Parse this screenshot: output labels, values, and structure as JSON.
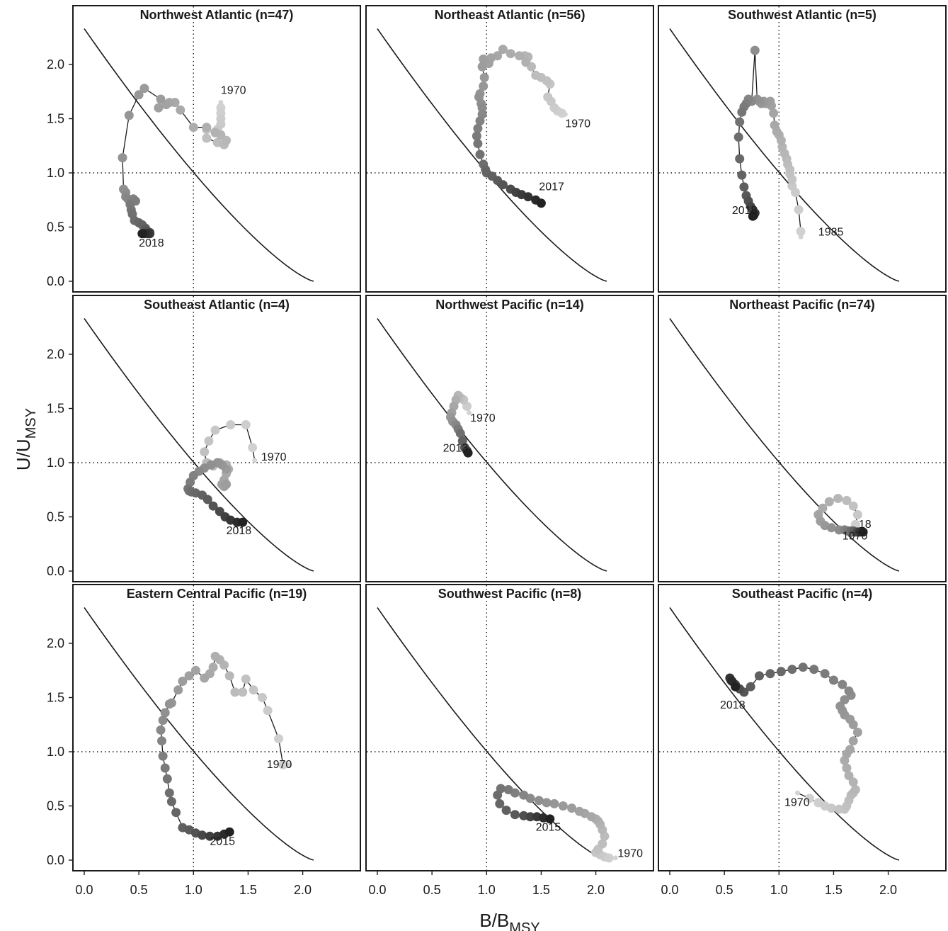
{
  "figure": {
    "xlabel": "B/B",
    "xlabel_sub": "MSY",
    "ylabel": "U/U",
    "ylabel_sub": "MSY",
    "x_ticks": [
      "0.0",
      "0.5",
      "1.0",
      "1.5",
      "2.0"
    ],
    "y_ticks": [
      "0.0",
      "0.5",
      "1.0",
      "1.5",
      "2.0"
    ],
    "colors": {
      "frame": "#1a1a1a",
      "curve": "#1a1a1a",
      "early": "#d4d4d4",
      "late": "#222222"
    }
  },
  "chart_data": [
    {
      "type": "line",
      "title": "Northwest Atlantic (n=47)",
      "xlim": [
        -0.1,
        2.5
      ],
      "ylim": [
        -0.1,
        2.5
      ],
      "reference_lines": {
        "x": 1.0,
        "y": 1.0
      },
      "labels": [
        {
          "text": "1970",
          "x": 1.25,
          "y": 1.73
        },
        {
          "text": "2018",
          "x": 0.5,
          "y": 0.32
        }
      ],
      "series": [
        {
          "x": [
            1.25,
            1.25,
            1.25,
            1.25,
            1.25,
            1.22,
            1.2,
            1.12,
            1.12,
            1.22,
            1.28,
            1.3,
            1.25,
            1.2,
            1.12,
            1.0,
            0.88,
            0.83,
            0.78,
            0.75,
            0.68,
            0.7,
            0.55,
            0.5,
            0.41,
            0.35,
            0.36,
            0.38,
            0.38,
            0.4,
            0.45,
            0.47,
            0.42,
            0.43,
            0.44,
            0.46,
            0.5,
            0.53,
            0.56,
            0.56,
            0.58,
            0.6,
            0.6,
            0.6,
            0.58,
            0.55,
            0.53
          ],
          "y": [
            1.65,
            1.6,
            1.55,
            1.5,
            1.45,
            1.4,
            1.38,
            1.4,
            1.32,
            1.28,
            1.26,
            1.3,
            1.35,
            1.37,
            1.42,
            1.42,
            1.58,
            1.65,
            1.65,
            1.63,
            1.6,
            1.68,
            1.78,
            1.72,
            1.53,
            1.14,
            0.85,
            0.82,
            0.78,
            0.76,
            0.76,
            0.74,
            0.71,
            0.66,
            0.62,
            0.56,
            0.54,
            0.52,
            0.49,
            0.47,
            0.46,
            0.45,
            0.44,
            0.44,
            0.44,
            0.44,
            0.44
          ]
        }
      ]
    },
    {
      "type": "line",
      "title": "Northeast Atlantic (n=56)",
      "xlim": [
        -0.1,
        2.5
      ],
      "ylim": [
        -0.1,
        2.5
      ],
      "reference_lines": {
        "x": 1.0,
        "y": 1.0
      },
      "labels": [
        {
          "text": "1970",
          "x": 1.72,
          "y": 1.42
        },
        {
          "text": "2017",
          "x": 1.48,
          "y": 0.84
        }
      ],
      "series": [
        {
          "x": [
            1.72,
            1.69,
            1.65,
            1.62,
            1.59,
            1.56,
            1.58,
            1.55,
            1.5,
            1.45,
            1.41,
            1.38,
            1.35,
            1.36,
            1.3,
            1.22,
            1.15,
            1.1,
            1.04,
            1.02,
            0.97,
            0.96,
            0.98,
            0.97,
            0.94,
            0.93,
            0.95,
            0.96,
            0.96,
            0.94,
            0.92,
            0.91,
            0.92,
            0.94,
            0.97,
            0.99,
            1.0,
            1.05,
            1.1,
            1.15,
            1.22,
            1.27,
            1.32,
            1.38,
            1.45,
            1.5
          ],
          "y": [
            1.54,
            1.55,
            1.57,
            1.6,
            1.66,
            1.7,
            1.82,
            1.85,
            1.88,
            1.9,
            1.98,
            2.07,
            2.08,
            2.02,
            2.08,
            2.1,
            2.14,
            2.08,
            2.06,
            2.01,
            2.05,
            1.98,
            1.88,
            1.8,
            1.73,
            1.7,
            1.64,
            1.6,
            1.54,
            1.48,
            1.41,
            1.34,
            1.27,
            1.17,
            1.08,
            1.03,
            1.0,
            0.97,
            0.93,
            0.89,
            0.85,
            0.82,
            0.8,
            0.78,
            0.75,
            0.72
          ]
        }
      ]
    },
    {
      "type": "line",
      "title": "Southwest Atlantic (n=5)",
      "xlim": [
        -0.1,
        2.5
      ],
      "ylim": [
        -0.1,
        2.5
      ],
      "reference_lines": {
        "x": 1.0,
        "y": 1.0
      },
      "labels": [
        {
          "text": "1985",
          "x": 1.36,
          "y": 0.42
        },
        {
          "text": "2018",
          "x": 0.57,
          "y": 0.62
        }
      ],
      "series": [
        {
          "x": [
            1.2,
            1.2,
            1.18,
            1.15,
            1.12,
            1.12,
            1.1,
            1.1,
            1.08,
            1.07,
            1.05,
            1.03,
            1.02,
            1.0,
            0.98,
            0.96,
            0.95,
            0.93,
            0.92,
            0.88,
            0.86,
            0.84,
            0.82,
            0.8,
            0.78,
            0.75,
            0.72,
            0.7,
            0.68,
            0.66,
            0.64,
            0.63,
            0.64,
            0.66,
            0.68,
            0.7,
            0.72,
            0.74,
            0.76,
            0.78,
            0.77,
            0.76
          ],
          "y": [
            0.41,
            0.46,
            0.66,
            0.82,
            0.88,
            0.94,
            0.99,
            1.03,
            1.08,
            1.13,
            1.18,
            1.24,
            1.3,
            1.35,
            1.38,
            1.44,
            1.55,
            1.62,
            1.66,
            1.64,
            1.66,
            1.64,
            1.66,
            1.68,
            2.13,
            1.66,
            1.68,
            1.64,
            1.61,
            1.56,
            1.47,
            1.33,
            1.13,
            0.98,
            0.87,
            0.79,
            0.74,
            0.69,
            0.66,
            0.63,
            0.61,
            0.6
          ]
        }
      ]
    },
    {
      "type": "line",
      "title": "Southeast Atlantic (n=4)",
      "xlim": [
        -0.1,
        2.5
      ],
      "ylim": [
        -0.1,
        2.5
      ],
      "reference_lines": {
        "x": 1.0,
        "y": 1.0
      },
      "labels": [
        {
          "text": "1970",
          "x": 1.62,
          "y": 1.02
        },
        {
          "text": "2018",
          "x": 1.3,
          "y": 0.34
        }
      ],
      "series": [
        {
          "x": [
            1.56,
            1.54,
            1.48,
            1.34,
            1.2,
            1.14,
            1.1,
            1.12,
            1.14,
            1.18,
            1.24,
            1.3,
            1.32,
            1.3,
            1.28,
            1.26,
            1.28,
            1.3,
            1.3,
            1.26,
            1.22,
            1.16,
            1.1,
            1.05,
            1.0,
            0.97,
            0.95,
            0.96,
            0.98,
            1.02,
            1.08,
            1.13,
            1.18,
            1.24,
            1.29,
            1.34,
            1.4,
            1.45
          ],
          "y": [
            1.02,
            1.14,
            1.35,
            1.35,
            1.3,
            1.2,
            1.1,
            1.0,
            0.99,
            0.97,
            1.0,
            0.98,
            0.94,
            0.9,
            0.84,
            0.8,
            0.78,
            0.8,
            0.94,
            0.98,
            1.0,
            0.98,
            0.95,
            0.92,
            0.88,
            0.82,
            0.76,
            0.74,
            0.73,
            0.72,
            0.7,
            0.66,
            0.6,
            0.55,
            0.5,
            0.47,
            0.45,
            0.45
          ]
        }
      ]
    },
    {
      "type": "line",
      "title": "Northwest Pacific (n=14)",
      "xlim": [
        -0.1,
        2.5
      ],
      "ylim": [
        -0.1,
        2.5
      ],
      "reference_lines": {
        "x": 1.0,
        "y": 1.0
      },
      "labels": [
        {
          "text": "1970",
          "x": 0.85,
          "y": 1.38
        },
        {
          "text": "2013",
          "x": 0.6,
          "y": 1.1
        }
      ],
      "series": [
        {
          "x": [
            0.84,
            0.82,
            0.79,
            0.76,
            0.74,
            0.72,
            0.7,
            0.68,
            0.67,
            0.69,
            0.72,
            0.74,
            0.76,
            0.78,
            0.8,
            0.82,
            0.83
          ],
          "y": [
            1.46,
            1.52,
            1.58,
            1.6,
            1.62,
            1.58,
            1.52,
            1.46,
            1.42,
            1.38,
            1.35,
            1.31,
            1.27,
            1.2,
            1.14,
            1.11,
            1.09
          ]
        }
      ]
    },
    {
      "type": "line",
      "title": "Northeast Pacific (n=74)",
      "xlim": [
        -0.1,
        2.5
      ],
      "ylim": [
        -0.1,
        2.5
      ],
      "reference_lines": {
        "x": 1.0,
        "y": 1.0
      },
      "labels": [
        {
          "text": "1970",
          "x": 1.58,
          "y": 0.29
        },
        {
          "text": "18",
          "x": 1.73,
          "y": 0.4
        }
      ],
      "series": [
        {
          "x": [
            1.66,
            1.7,
            1.72,
            1.68,
            1.62,
            1.54,
            1.46,
            1.4,
            1.36,
            1.38,
            1.42,
            1.48,
            1.55,
            1.6,
            1.63,
            1.66,
            1.68,
            1.7,
            1.72,
            1.74,
            1.77
          ],
          "y": [
            0.38,
            0.43,
            0.52,
            0.6,
            0.65,
            0.67,
            0.64,
            0.58,
            0.52,
            0.46,
            0.42,
            0.4,
            0.38,
            0.38,
            0.37,
            0.37,
            0.37,
            0.36,
            0.36,
            0.36,
            0.36
          ]
        }
      ]
    },
    {
      "type": "line",
      "title": "Eastern Central Pacific (n=19)",
      "xlim": [
        -0.1,
        2.5
      ],
      "ylim": [
        -0.1,
        2.5
      ],
      "reference_lines": {
        "x": 1.0,
        "y": 1.0
      },
      "labels": [
        {
          "text": "1970",
          "x": 1.67,
          "y": 0.85
        },
        {
          "text": "2015",
          "x": 1.15,
          "y": 0.14
        }
      ],
      "series": [
        {
          "x": [
            1.88,
            1.82,
            1.78,
            1.68,
            1.63,
            1.55,
            1.48,
            1.45,
            1.38,
            1.33,
            1.28,
            1.24,
            1.2,
            1.18,
            1.15,
            1.1,
            1.02,
            0.96,
            0.9,
            0.86,
            0.8,
            0.78,
            0.74,
            0.72,
            0.7,
            0.71,
            0.72,
            0.74,
            0.76,
            0.78,
            0.8,
            0.84,
            0.9,
            0.96,
            1.02,
            1.08,
            1.15,
            1.22,
            1.28,
            1.33
          ],
          "y": [
            0.88,
            0.88,
            1.12,
            1.38,
            1.5,
            1.57,
            1.67,
            1.55,
            1.55,
            1.7,
            1.8,
            1.85,
            1.88,
            1.78,
            1.72,
            1.68,
            1.75,
            1.7,
            1.65,
            1.57,
            1.45,
            1.44,
            1.36,
            1.29,
            1.2,
            1.1,
            0.96,
            0.85,
            0.75,
            0.62,
            0.54,
            0.44,
            0.3,
            0.28,
            0.25,
            0.23,
            0.22,
            0.22,
            0.24,
            0.26
          ]
        }
      ]
    },
    {
      "type": "line",
      "title": "Southwest Pacific (n=8)",
      "xlim": [
        -0.1,
        2.5
      ],
      "ylim": [
        -0.1,
        2.5
      ],
      "reference_lines": {
        "x": 1.0,
        "y": 1.0
      },
      "labels": [
        {
          "text": "1970",
          "x": 2.2,
          "y": 0.03
        },
        {
          "text": "2015",
          "x": 1.45,
          "y": 0.27
        }
      ],
      "series": [
        {
          "x": [
            2.18,
            2.12,
            2.08,
            2.04,
            2.0,
            2.02,
            2.06,
            2.08,
            2.06,
            2.04,
            2.02,
            2.0,
            1.96,
            1.9,
            1.85,
            1.78,
            1.7,
            1.62,
            1.55,
            1.48,
            1.4,
            1.34,
            1.26,
            1.2,
            1.13,
            1.1,
            1.12,
            1.18,
            1.26,
            1.34,
            1.4,
            1.46,
            1.52,
            1.58
          ],
          "y": [
            0.02,
            0.02,
            0.03,
            0.05,
            0.07,
            0.1,
            0.15,
            0.22,
            0.28,
            0.33,
            0.36,
            0.38,
            0.4,
            0.43,
            0.45,
            0.48,
            0.5,
            0.52,
            0.53,
            0.55,
            0.57,
            0.6,
            0.62,
            0.65,
            0.66,
            0.6,
            0.52,
            0.46,
            0.42,
            0.41,
            0.4,
            0.4,
            0.39,
            0.38
          ]
        }
      ]
    },
    {
      "type": "line",
      "title": "Southeast Pacific (n=4)",
      "xlim": [
        -0.1,
        2.5
      ],
      "ylim": [
        -0.1,
        2.5
      ],
      "reference_lines": {
        "x": 1.0,
        "y": 1.0
      },
      "labels": [
        {
          "text": "1970",
          "x": 1.05,
          "y": 0.5
        },
        {
          "text": "2018",
          "x": 0.46,
          "y": 1.4
        }
      ],
      "series": [
        {
          "x": [
            1.17,
            1.28,
            1.36,
            1.42,
            1.48,
            1.55,
            1.6,
            1.62,
            1.64,
            1.66,
            1.68,
            1.7,
            1.68,
            1.64,
            1.62,
            1.6,
            1.62,
            1.65,
            1.68,
            1.72,
            1.68,
            1.65,
            1.6,
            1.58,
            1.56,
            1.6,
            1.66,
            1.64,
            1.58,
            1.5,
            1.42,
            1.32,
            1.22,
            1.12,
            1.02,
            0.92,
            0.82,
            0.74,
            0.68,
            0.64,
            0.6,
            0.56,
            0.55,
            0.57,
            0.6
          ],
          "y": [
            0.62,
            0.57,
            0.53,
            0.5,
            0.48,
            0.47,
            0.47,
            0.5,
            0.55,
            0.6,
            0.62,
            0.65,
            0.72,
            0.78,
            0.85,
            0.92,
            0.98,
            1.02,
            1.1,
            1.18,
            1.25,
            1.3,
            1.34,
            1.38,
            1.42,
            1.48,
            1.52,
            1.56,
            1.62,
            1.66,
            1.72,
            1.76,
            1.78,
            1.76,
            1.74,
            1.72,
            1.7,
            1.6,
            1.55,
            1.58,
            1.62,
            1.66,
            1.68,
            1.65,
            1.6
          ]
        }
      ]
    }
  ]
}
